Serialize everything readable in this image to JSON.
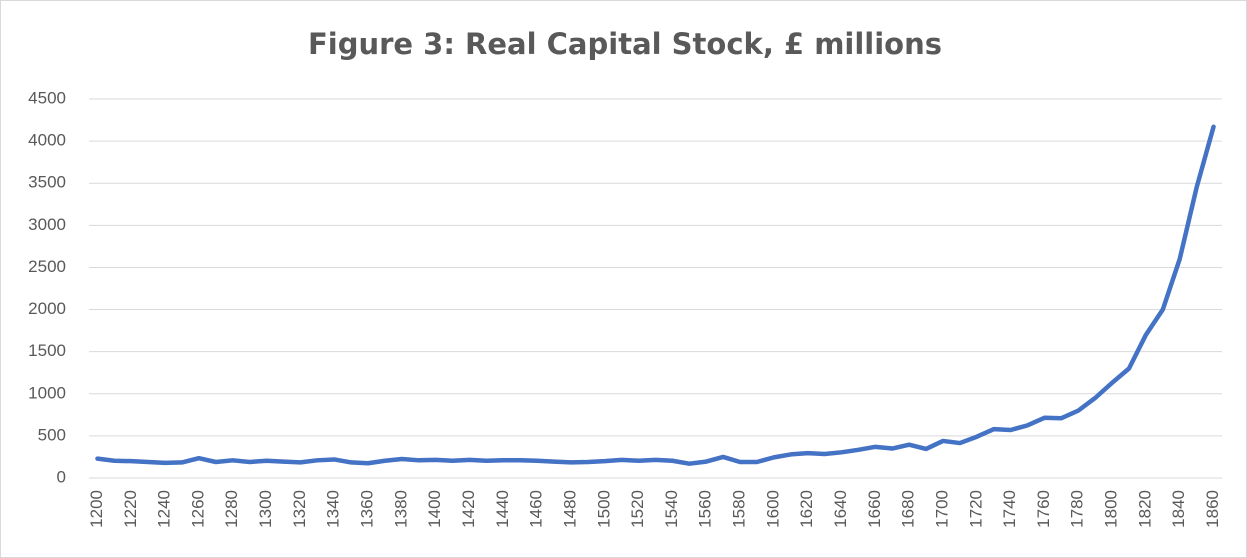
{
  "chart_data": {
    "type": "line",
    "title": "Figure 3: Real Capital Stock, £ millions",
    "categories": [
      "1200",
      null,
      "1220",
      null,
      "1240",
      null,
      "1260",
      null,
      "1280",
      null,
      "1300",
      null,
      "1320",
      null,
      "1340",
      null,
      "1360",
      null,
      "1380",
      null,
      "1400",
      null,
      "1420",
      null,
      "1440",
      null,
      "1460",
      null,
      "1480",
      null,
      "1500",
      null,
      "1520",
      null,
      "1540",
      null,
      "1560",
      null,
      "1580",
      null,
      "1600",
      null,
      "1620",
      null,
      "1640",
      null,
      "1660",
      null,
      "1680",
      null,
      "1700",
      null,
      "1720",
      null,
      "1740",
      null,
      "1760",
      null,
      "1780",
      null,
      "1800",
      null,
      "1820",
      null,
      "1840",
      null,
      "1860"
    ],
    "values": [
      230,
      205,
      200,
      190,
      180,
      185,
      235,
      190,
      210,
      190,
      205,
      195,
      185,
      210,
      220,
      185,
      175,
      205,
      225,
      210,
      215,
      205,
      215,
      205,
      210,
      210,
      205,
      195,
      185,
      190,
      200,
      215,
      205,
      215,
      205,
      170,
      195,
      250,
      190,
      190,
      245,
      280,
      295,
      285,
      305,
      335,
      370,
      350,
      395,
      345,
      440,
      415,
      490,
      580,
      570,
      625,
      715,
      710,
      800,
      950,
      1130,
      1300,
      1700,
      2000,
      2600,
      3450,
      4170
    ],
    "color": "#4472c4",
    "ylim": [
      0,
      4500
    ],
    "yticks": [
      0,
      500,
      1000,
      1500,
      2000,
      2500,
      3000,
      3500,
      4000,
      4500
    ],
    "grid": true
  }
}
